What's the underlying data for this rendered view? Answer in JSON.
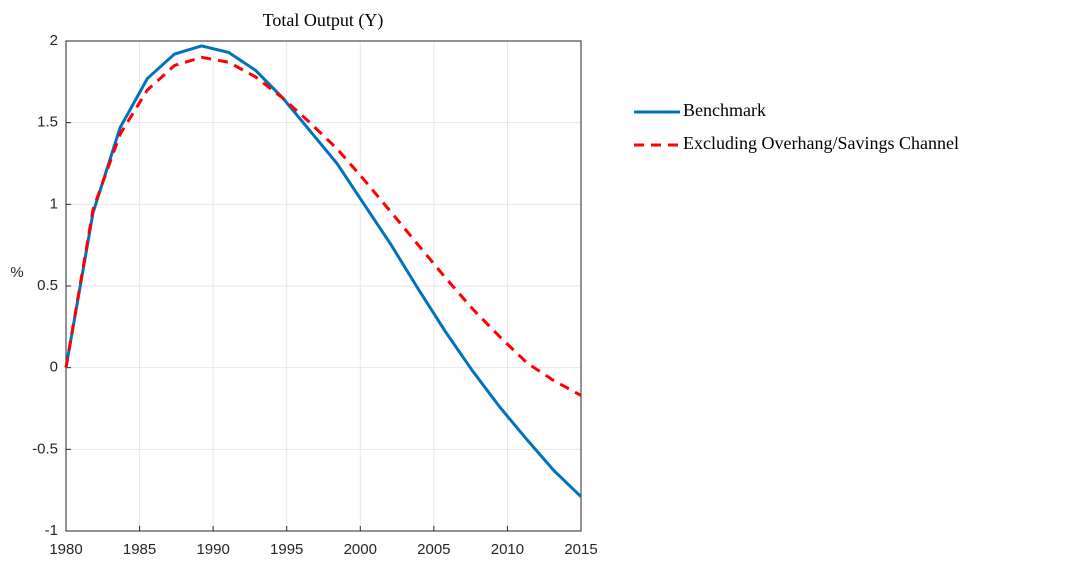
{
  "chart_data": {
    "type": "line",
    "title": "Total Output (Y)",
    "ylabel": "%",
    "x": [
      1980,
      1981.84,
      1983.68,
      1985.53,
      1987.37,
      1989.21,
      1991.05,
      1992.89,
      1994.74,
      1996.58,
      1998.42,
      2000.26,
      2002.11,
      2003.95,
      2005.79,
      2007.63,
      2009.47,
      2011.32,
      2013.16,
      2015
    ],
    "series": [
      {
        "name": "Benchmark",
        "color": "#0072bd",
        "dash": "solid",
        "values": [
          0,
          0.95,
          1.47,
          1.77,
          1.92,
          1.97,
          1.93,
          1.82,
          1.65,
          1.45,
          1.25,
          1.0,
          0.75,
          0.48,
          0.22,
          -0.02,
          -0.24,
          -0.44,
          -0.63,
          -0.79
        ]
      },
      {
        "name": "Excluding Overhang/Savings Channel",
        "color": "#ff0000",
        "dash": "dashed",
        "values": [
          0,
          0.97,
          1.43,
          1.7,
          1.85,
          1.9,
          1.87,
          1.78,
          1.65,
          1.5,
          1.34,
          1.15,
          0.95,
          0.75,
          0.55,
          0.36,
          0.19,
          0.03,
          -0.08,
          -0.17
        ]
      }
    ],
    "xlim": [
      1980,
      2015
    ],
    "xticks": [
      1980,
      1985,
      1990,
      1995,
      2000,
      2005,
      2010,
      2015
    ],
    "ylim": [
      -1,
      2
    ],
    "yticks": [
      -1,
      -0.5,
      0,
      0.5,
      1,
      1.5,
      2
    ],
    "grid": true,
    "legend": "east-outside"
  }
}
